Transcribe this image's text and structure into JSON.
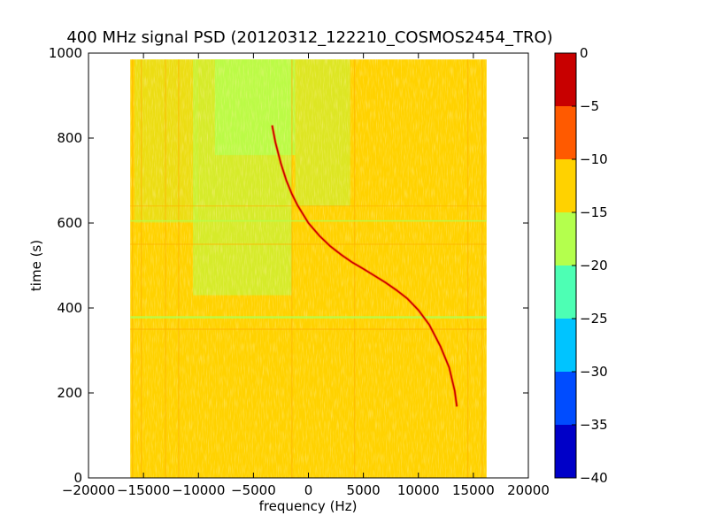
{
  "chart_data": {
    "type": "heatmap",
    "title": "400 MHz signal PSD (20120312_122210_COSMOS2454_TRO)",
    "xlabel": "frequency (Hz)",
    "ylabel": "time (s)",
    "xlim": [
      -20000,
      20000
    ],
    "ylim": [
      0,
      1000
    ],
    "x_ticks": [
      -20000,
      -15000,
      -10000,
      -5000,
      0,
      5000,
      10000,
      15000,
      20000
    ],
    "x_tick_labels": [
      "−20000",
      "−15000",
      "−10000",
      "−5000",
      "0",
      "5000",
      "10000",
      "15000",
      "20000"
    ],
    "y_ticks": [
      0,
      200,
      400,
      600,
      800,
      1000
    ],
    "y_tick_labels": [
      "0",
      "200",
      "400",
      "600",
      "800",
      "1000"
    ],
    "data_extent": {
      "freq": [
        -16200,
        16200
      ],
      "time": [
        0,
        985
      ]
    },
    "colorbar": {
      "levels": [
        -40,
        -35,
        -30,
        -25,
        -20,
        -15,
        -10,
        -5,
        0
      ],
      "tick_labels": [
        "−40",
        "−35",
        "−30",
        "−25",
        "−20",
        "−15",
        "−10",
        "−5",
        "0"
      ],
      "colors": [
        "#0000c8",
        "#004cff",
        "#00c4ff",
        "#4dffb4",
        "#b4ff4d",
        "#ffd200",
        "#ff5a00",
        "#c80000"
      ]
    },
    "background_level_color": "#ffd200",
    "weak_region_color": "#b4ff4d",
    "signal_trace": {
      "color": "#c80000",
      "points": [
        [
          -3300,
          830
        ],
        [
          -3000,
          790
        ],
        [
          -2500,
          740
        ],
        [
          -2000,
          700
        ],
        [
          -1500,
          668
        ],
        [
          -1000,
          642
        ],
        [
          0,
          600
        ],
        [
          1000,
          570
        ],
        [
          2000,
          545
        ],
        [
          3000,
          525
        ],
        [
          4000,
          507
        ],
        [
          5000,
          492
        ],
        [
          6000,
          476
        ],
        [
          7000,
          460
        ],
        [
          8000,
          442
        ],
        [
          9000,
          422
        ],
        [
          10000,
          395
        ],
        [
          11000,
          360
        ],
        [
          12000,
          310
        ],
        [
          12800,
          260
        ],
        [
          13300,
          205
        ],
        [
          13500,
          168
        ]
      ]
    }
  }
}
